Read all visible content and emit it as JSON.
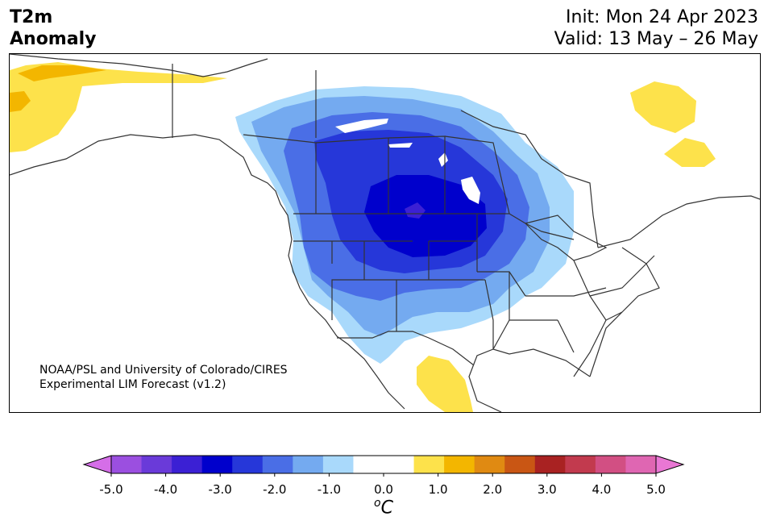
{
  "header": {
    "title_line1": "T2m",
    "title_line2": "Anomaly",
    "init": "Init: Mon 24 Apr 2023",
    "valid": "Valid: 13 May – 26 May"
  },
  "credit": {
    "line1": "NOAA/PSL and University of Colorado/CIRES",
    "line2": "Experimental LIM Forecast (v1.2)"
  },
  "colorbar": {
    "colors": [
      "#d56ee8",
      "#9b4fe0",
      "#6a3ad9",
      "#3b20d4",
      "#0000cc",
      "#2637d9",
      "#4a6ee6",
      "#74aaf0",
      "#a9d9fb",
      "#ffffff",
      "#ffffff",
      "#fde24b",
      "#f3b600",
      "#e08a12",
      "#c95614",
      "#a92222",
      "#c23a4e",
      "#d24f83",
      "#df66b2",
      "#e977d4"
    ],
    "ticks": [
      "-5.0",
      "-4.0",
      "-3.0",
      "-2.0",
      "-1.0",
      "0.0",
      "1.0",
      "2.0",
      "3.0",
      "4.0",
      "5.0"
    ],
    "unit_sup": "o",
    "unit": "C"
  },
  "anomaly_colors": {
    "warm_1": "#fde24b",
    "warm_2": "#f3b600",
    "cool_1": "#a9d9fb",
    "cool_2": "#74aaf0",
    "cool_3": "#4a6ee6",
    "cool_4": "#2637d9",
    "cool_5": "#0000cc",
    "cool_6": "#3b20d4"
  }
}
